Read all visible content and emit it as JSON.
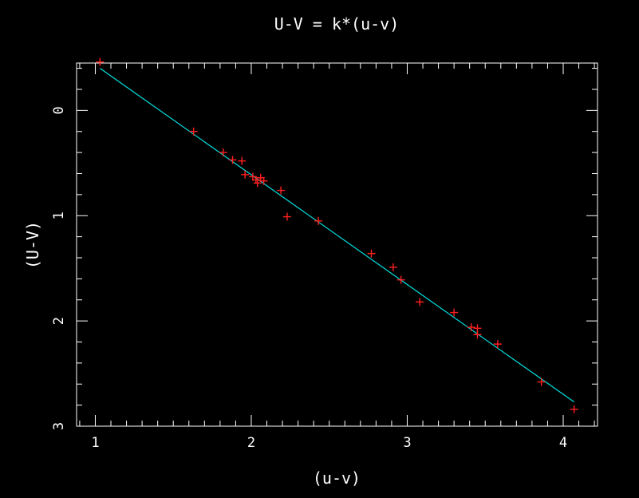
{
  "chart_data": {
    "type": "scatter",
    "title": "U-V = k*(u-v)",
    "xlabel": "(u-v)",
    "ylabel": "(U-V)",
    "xlim": [
      0.88,
      4.22
    ],
    "ylim": [
      -0.45,
      3.0
    ],
    "y_inverted": true,
    "x_ticks": [
      1,
      2,
      3,
      4
    ],
    "y_ticks": [
      0,
      1,
      2,
      3
    ],
    "grid": false,
    "legend": "none",
    "colors": {
      "background": "#000000",
      "frame": "#ffffff",
      "points": "#ff2020",
      "fit_line": "#00e0e0"
    },
    "series": [
      {
        "kind": "points",
        "x": [
          1.03,
          1.63,
          1.82,
          1.88,
          1.94,
          1.96,
          2.01,
          2.03,
          2.04,
          2.06,
          2.08,
          2.19,
          2.23,
          2.43,
          2.77,
          2.91,
          2.96,
          3.08,
          3.3,
          3.41,
          3.45,
          3.45,
          3.58,
          3.86,
          4.07
        ],
        "y": [
          -0.46,
          0.2,
          0.4,
          0.47,
          0.48,
          0.61,
          0.63,
          0.66,
          0.69,
          0.64,
          0.67,
          0.76,
          1.01,
          1.05,
          1.36,
          1.49,
          1.61,
          1.82,
          1.92,
          2.06,
          2.07,
          2.13,
          2.22,
          2.58,
          2.84
        ]
      },
      {
        "kind": "fit-line",
        "x": [
          1.03,
          4.07
        ],
        "y": [
          -0.4,
          2.77
        ]
      }
    ]
  }
}
